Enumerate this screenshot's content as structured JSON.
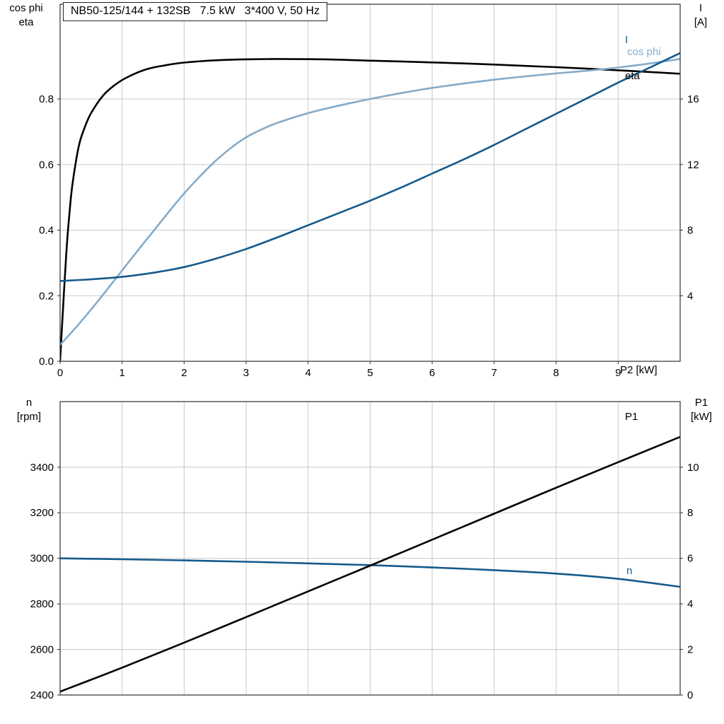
{
  "colors": {
    "black": "#000000",
    "dark_blue": "#145a8c",
    "light_blue": "#85abc9",
    "grid": "#c8c8c8",
    "frame": "#2e2e2e"
  },
  "chart_data": [
    {
      "type": "line",
      "title": "NB50-125/144 + 132SB   7.5 kW   3*400 V, 50 Hz",
      "x_label": "P2 [kW]",
      "x_axis": {
        "range": [
          0,
          10
        ],
        "ticks": [
          0,
          1,
          2,
          3,
          4,
          5,
          6,
          7,
          8,
          9
        ],
        "tick_labels": [
          "0",
          "1",
          "2",
          "3",
          "4",
          "5",
          "6",
          "7",
          "8",
          "9"
        ]
      },
      "left_axis": {
        "label_lines": [
          "cos phi",
          "eta"
        ],
        "range": [
          0,
          1.089
        ],
        "ticks": [
          0,
          0.2,
          0.4,
          0.6,
          0.8
        ],
        "tick_labels": [
          "0.0",
          "0.2",
          "0.4",
          "0.6",
          "0.8"
        ]
      },
      "right_axis": {
        "label_lines": [
          "I",
          "[A]"
        ],
        "range": [
          0,
          21.78
        ],
        "ticks": [
          4,
          8,
          12,
          16
        ],
        "tick_labels": [
          "4",
          "8",
          "12",
          "16"
        ]
      },
      "series": [
        {
          "name": "eta",
          "axis": "left",
          "color_key": "black",
          "x": [
            0,
            0.05,
            0.1,
            0.15,
            0.2,
            0.3,
            0.4,
            0.5,
            0.7,
            0.9,
            1.1,
            1.4,
            1.7,
            2,
            2.5,
            3,
            3.5,
            4,
            4.5,
            5,
            5.5,
            6,
            6.5,
            7,
            7.5,
            8,
            8.5,
            9,
            9.5,
            10
          ],
          "y": [
            0,
            0.17,
            0.33,
            0.45,
            0.54,
            0.655,
            0.715,
            0.757,
            0.812,
            0.845,
            0.868,
            0.891,
            0.903,
            0.911,
            0.918,
            0.921,
            0.922,
            0.9215,
            0.92,
            0.917,
            0.9145,
            0.9115,
            0.9085,
            0.905,
            0.901,
            0.897,
            0.8925,
            0.8875,
            0.8825,
            0.877
          ]
        },
        {
          "name": "cos phi",
          "axis": "left",
          "color_key": "light_blue",
          "x": [
            0,
            0.25,
            0.5,
            0.75,
            1,
            1.25,
            1.5,
            1.75,
            2,
            2.25,
            2.5,
            2.75,
            3,
            3.25,
            3.5,
            4,
            4.5,
            5,
            5.5,
            6,
            6.5,
            7,
            7.5,
            8,
            8.5,
            9,
            9.5,
            10
          ],
          "y": [
            0.05,
            0.102,
            0.158,
            0.217,
            0.277,
            0.337,
            0.396,
            0.455,
            0.512,
            0.563,
            0.61,
            0.65,
            0.683,
            0.707,
            0.727,
            0.757,
            0.78,
            0.8,
            0.818,
            0.834,
            0.847,
            0.859,
            0.869,
            0.878,
            0.886,
            0.896,
            0.908,
            0.922
          ]
        },
        {
          "name": "I",
          "axis": "right",
          "color_key": "dark_blue",
          "x": [
            0,
            0.5,
            1,
            1.5,
            2,
            2.5,
            3,
            3.5,
            4,
            4.5,
            5,
            5.5,
            6,
            6.5,
            7,
            7.5,
            8,
            8.5,
            9,
            9.5,
            10
          ],
          "y": [
            4.9,
            5.0,
            5.15,
            5.4,
            5.75,
            6.25,
            6.85,
            7.55,
            8.3,
            9.05,
            9.8,
            10.6,
            11.45,
            12.3,
            13.2,
            14.15,
            15.1,
            16.05,
            17.0,
            17.9,
            18.8
          ]
        }
      ]
    },
    {
      "type": "line",
      "x_label": "",
      "x_axis": {
        "range": [
          0,
          10
        ],
        "ticks": [
          0,
          1,
          2,
          3,
          4,
          5,
          6,
          7,
          8,
          9
        ],
        "tick_labels": []
      },
      "left_axis": {
        "label_lines": [
          "n",
          "[rpm]"
        ],
        "range": [
          2400,
          3688
        ],
        "ticks": [
          2400,
          2600,
          2800,
          3000,
          3200,
          3400
        ],
        "tick_labels": [
          "2400",
          "2600",
          "2800",
          "3000",
          "3200",
          "3400"
        ]
      },
      "right_axis": {
        "label_lines": [
          "P1",
          "[kW]"
        ],
        "range": [
          0,
          12.88
        ],
        "ticks": [
          0,
          2,
          4,
          6,
          8,
          10
        ],
        "tick_labels": [
          "0",
          "2",
          "4",
          "6",
          "8",
          "10"
        ]
      },
      "series": [
        {
          "name": "n",
          "axis": "left",
          "color_key": "dark_blue",
          "x": [
            0,
            1,
            2,
            3,
            4,
            5,
            6,
            7,
            8,
            9,
            10
          ],
          "y": [
            3000,
            2996,
            2991,
            2985,
            2978,
            2970,
            2960,
            2948,
            2933,
            2910,
            2875
          ]
        },
        {
          "name": "P1",
          "axis": "right",
          "color_key": "black",
          "x": [
            0,
            1,
            2,
            3,
            4,
            5,
            6,
            7,
            8,
            9,
            10
          ],
          "y": [
            0.15,
            1.2,
            2.3,
            3.42,
            4.55,
            5.68,
            6.82,
            7.96,
            9.1,
            10.22,
            11.33
          ]
        }
      ]
    }
  ]
}
